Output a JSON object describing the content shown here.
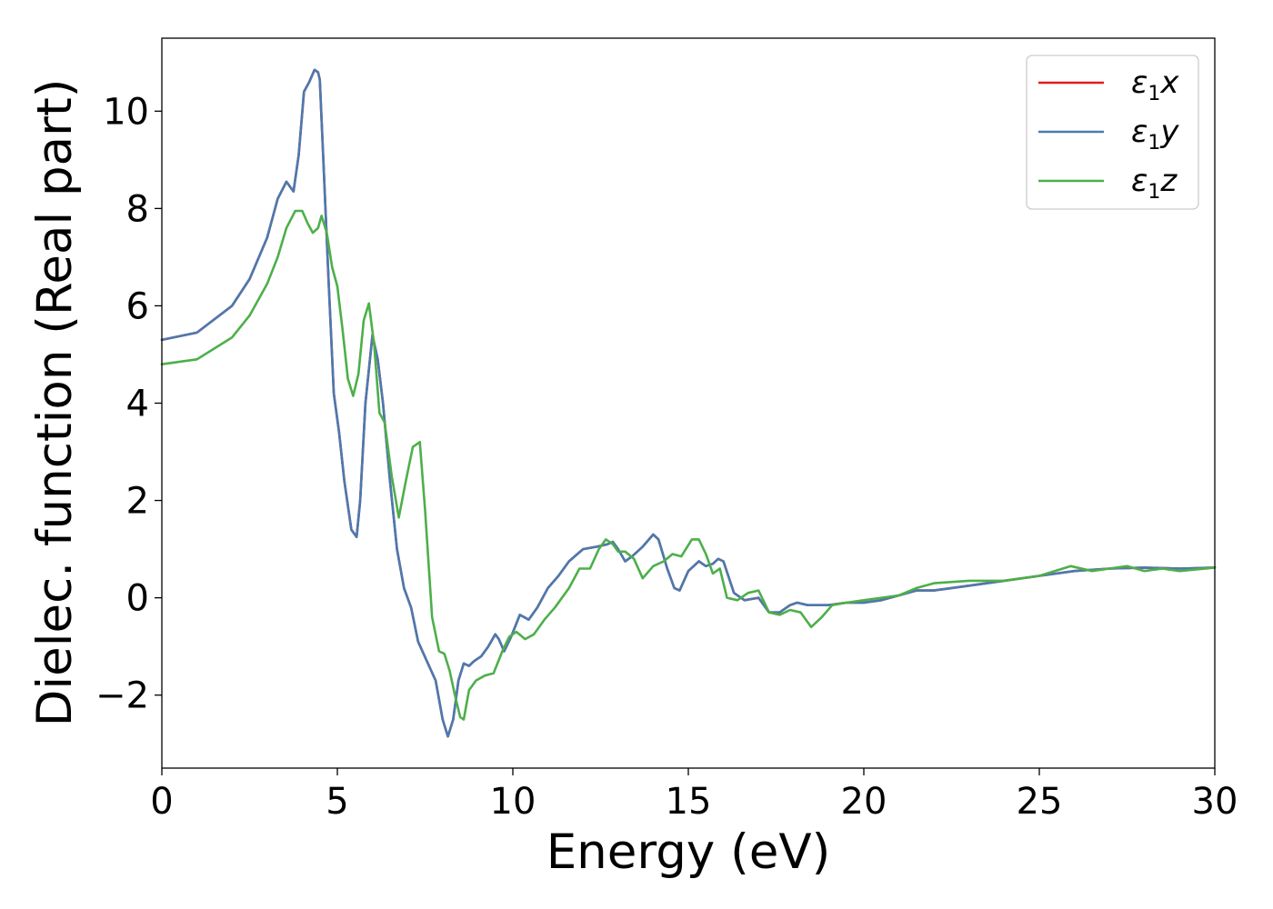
{
  "chart_data": {
    "type": "line",
    "xlabel": "Energy (eV)",
    "ylabel": "Dielec. function (Real part)",
    "xlim": [
      0,
      30
    ],
    "ylim": [
      -3.5,
      11.5
    ],
    "xticks": [
      "0",
      "5",
      "10",
      "15",
      "20",
      "25",
      "30"
    ],
    "xtick_values": [
      0,
      5,
      10,
      15,
      20,
      25,
      30
    ],
    "yticks": [
      "−2",
      "0",
      "2",
      "4",
      "6",
      "8",
      "10"
    ],
    "ytick_values": [
      -2,
      0,
      2,
      4,
      6,
      8,
      10
    ],
    "grid": false,
    "legend_position": "upper-right",
    "series": [
      {
        "name": "ε",
        "sub": "1",
        "axis": "x",
        "color": "#e41a1c",
        "x": [
          0,
          1,
          2,
          2.5,
          3,
          3.3,
          3.55,
          3.75,
          3.9,
          4.05,
          4.2,
          4.35,
          4.45,
          4.5,
          4.6,
          4.75,
          4.9,
          5.05,
          5.2,
          5.4,
          5.55,
          5.65,
          5.8,
          6.0,
          6.15,
          6.3,
          6.5,
          6.7,
          6.9,
          7.1,
          7.3,
          7.55,
          7.8,
          8.0,
          8.15,
          8.3,
          8.45,
          8.6,
          8.75,
          8.9,
          9.1,
          9.3,
          9.5,
          9.6,
          9.75,
          9.95,
          10.2,
          10.45,
          10.7,
          11.0,
          11.3,
          11.6,
          12.0,
          12.4,
          12.7,
          12.85,
          13.0,
          13.2,
          13.4,
          13.7,
          14.0,
          14.15,
          14.4,
          14.6,
          14.75,
          15.0,
          15.3,
          15.5,
          15.7,
          15.85,
          16.0,
          16.3,
          16.6,
          17.0,
          17.3,
          17.6,
          17.9,
          18.1,
          18.4,
          18.7,
          19.0,
          19.5,
          20.0,
          20.5,
          21.0,
          21.5,
          22.0,
          23.0,
          24.0,
          25.0,
          26.0,
          27.0,
          28.0,
          29.0,
          30.0
        ],
        "values": [
          5.3,
          5.45,
          6.0,
          6.55,
          7.4,
          8.2,
          8.55,
          8.35,
          9.1,
          10.4,
          10.6,
          10.85,
          10.8,
          10.65,
          9.0,
          6.5,
          4.2,
          3.4,
          2.4,
          1.4,
          1.25,
          2.0,
          4.0,
          5.4,
          4.9,
          4.0,
          2.4,
          1.0,
          0.2,
          -0.2,
          -0.9,
          -1.3,
          -1.7,
          -2.5,
          -2.85,
          -2.5,
          -1.7,
          -1.35,
          -1.4,
          -1.3,
          -1.2,
          -1.0,
          -0.75,
          -0.85,
          -1.1,
          -0.8,
          -0.35,
          -0.45,
          -0.2,
          0.2,
          0.45,
          0.75,
          1.0,
          1.05,
          1.1,
          1.15,
          1.0,
          0.75,
          0.85,
          1.05,
          1.3,
          1.2,
          0.6,
          0.2,
          0.15,
          0.55,
          0.75,
          0.65,
          0.7,
          0.8,
          0.75,
          0.1,
          -0.05,
          0.0,
          -0.3,
          -0.3,
          -0.15,
          -0.1,
          -0.15,
          -0.15,
          -0.15,
          -0.1,
          -0.1,
          -0.05,
          0.05,
          0.15,
          0.15,
          0.25,
          0.35,
          0.45,
          0.55,
          0.6,
          0.62,
          0.6,
          0.62
        ]
      },
      {
        "name": "ε",
        "sub": "1",
        "axis": "y",
        "color": "#4a7ab0",
        "x": [
          0,
          1,
          2,
          2.5,
          3,
          3.3,
          3.55,
          3.75,
          3.9,
          4.05,
          4.2,
          4.35,
          4.45,
          4.5,
          4.6,
          4.75,
          4.9,
          5.05,
          5.2,
          5.4,
          5.55,
          5.65,
          5.8,
          6.0,
          6.15,
          6.3,
          6.5,
          6.7,
          6.9,
          7.1,
          7.3,
          7.55,
          7.8,
          8.0,
          8.15,
          8.3,
          8.45,
          8.6,
          8.75,
          8.9,
          9.1,
          9.3,
          9.5,
          9.6,
          9.75,
          9.95,
          10.2,
          10.45,
          10.7,
          11.0,
          11.3,
          11.6,
          12.0,
          12.4,
          12.7,
          12.85,
          13.0,
          13.2,
          13.4,
          13.7,
          14.0,
          14.15,
          14.4,
          14.6,
          14.75,
          15.0,
          15.3,
          15.5,
          15.7,
          15.85,
          16.0,
          16.3,
          16.6,
          17.0,
          17.3,
          17.6,
          17.9,
          18.1,
          18.4,
          18.7,
          19.0,
          19.5,
          20.0,
          20.5,
          21.0,
          21.5,
          22.0,
          23.0,
          24.0,
          25.0,
          26.0,
          27.0,
          28.0,
          29.0,
          30.0
        ],
        "values": [
          5.3,
          5.45,
          6.0,
          6.55,
          7.4,
          8.2,
          8.55,
          8.35,
          9.1,
          10.4,
          10.6,
          10.85,
          10.8,
          10.65,
          9.0,
          6.5,
          4.2,
          3.4,
          2.4,
          1.4,
          1.25,
          2.0,
          4.0,
          5.4,
          4.9,
          4.0,
          2.4,
          1.0,
          0.2,
          -0.2,
          -0.9,
          -1.3,
          -1.7,
          -2.5,
          -2.85,
          -2.5,
          -1.7,
          -1.35,
          -1.4,
          -1.3,
          -1.2,
          -1.0,
          -0.75,
          -0.85,
          -1.1,
          -0.8,
          -0.35,
          -0.45,
          -0.2,
          0.2,
          0.45,
          0.75,
          1.0,
          1.05,
          1.1,
          1.15,
          1.0,
          0.75,
          0.85,
          1.05,
          1.3,
          1.2,
          0.6,
          0.2,
          0.15,
          0.55,
          0.75,
          0.65,
          0.7,
          0.8,
          0.75,
          0.1,
          -0.05,
          0.0,
          -0.3,
          -0.3,
          -0.15,
          -0.1,
          -0.15,
          -0.15,
          -0.15,
          -0.1,
          -0.1,
          -0.05,
          0.05,
          0.15,
          0.15,
          0.25,
          0.35,
          0.45,
          0.55,
          0.6,
          0.62,
          0.6,
          0.62
        ]
      },
      {
        "name": "ε",
        "sub": "1",
        "axis": "z",
        "color": "#4daf4a",
        "x": [
          0,
          1,
          2,
          2.5,
          3,
          3.3,
          3.55,
          3.8,
          4.0,
          4.15,
          4.3,
          4.45,
          4.55,
          4.7,
          4.85,
          5.0,
          5.15,
          5.3,
          5.45,
          5.6,
          5.75,
          5.9,
          6.05,
          6.2,
          6.35,
          6.55,
          6.75,
          6.95,
          7.15,
          7.35,
          7.5,
          7.7,
          7.9,
          8.05,
          8.2,
          8.35,
          8.5,
          8.6,
          8.75,
          8.95,
          9.2,
          9.45,
          9.7,
          9.9,
          10.1,
          10.35,
          10.6,
          10.9,
          11.2,
          11.6,
          11.9,
          12.2,
          12.45,
          12.65,
          12.85,
          13.0,
          13.2,
          13.45,
          13.7,
          14.0,
          14.3,
          14.55,
          14.8,
          15.1,
          15.3,
          15.5,
          15.7,
          15.9,
          16.1,
          16.4,
          16.7,
          17.0,
          17.3,
          17.6,
          17.9,
          18.2,
          18.5,
          18.8,
          19.1,
          19.5,
          20.0,
          20.5,
          21.0,
          21.5,
          22.0,
          23.0,
          24.0,
          25.0,
          25.9,
          26.5,
          27.0,
          27.5,
          28.0,
          28.5,
          29.0,
          30.0
        ],
        "values": [
          4.8,
          4.9,
          5.35,
          5.8,
          6.45,
          7.0,
          7.6,
          7.95,
          7.95,
          7.7,
          7.5,
          7.6,
          7.85,
          7.5,
          6.8,
          6.4,
          5.5,
          4.5,
          4.15,
          4.6,
          5.7,
          6.05,
          5.2,
          3.8,
          3.6,
          2.5,
          1.65,
          2.4,
          3.1,
          3.2,
          1.8,
          -0.4,
          -1.1,
          -1.15,
          -1.5,
          -2.0,
          -2.45,
          -2.5,
          -1.9,
          -1.7,
          -1.6,
          -1.55,
          -1.1,
          -0.8,
          -0.7,
          -0.85,
          -0.75,
          -0.45,
          -0.2,
          0.2,
          0.6,
          0.6,
          1.0,
          1.2,
          1.1,
          0.95,
          0.95,
          0.8,
          0.4,
          0.65,
          0.75,
          0.9,
          0.85,
          1.2,
          1.2,
          0.9,
          0.5,
          0.6,
          0.0,
          -0.05,
          0.1,
          0.15,
          -0.3,
          -0.35,
          -0.25,
          -0.3,
          -0.6,
          -0.4,
          -0.15,
          -0.1,
          -0.05,
          0.0,
          0.05,
          0.2,
          0.3,
          0.35,
          0.35,
          0.45,
          0.65,
          0.55,
          0.6,
          0.65,
          0.55,
          0.6,
          0.55,
          0.62
        ]
      }
    ]
  }
}
